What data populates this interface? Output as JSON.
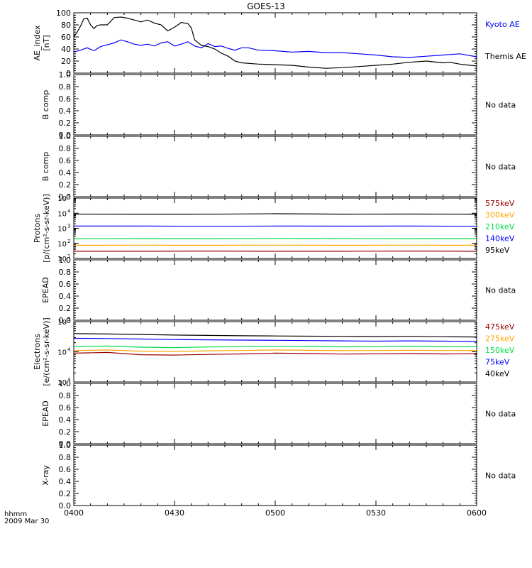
{
  "title": "GOES-13",
  "time_axis": {
    "ticks": [
      "0400",
      "0430",
      "0500",
      "0530",
      "0600"
    ],
    "label_line1": "hhmm",
    "label_line2": "2009 Mar 30"
  },
  "colors": {
    "black": "#000000",
    "blue": "#0000ff",
    "green": "#00dd44",
    "orange": "#ffa500",
    "darkred": "#990000"
  },
  "chart_data": [
    {
      "type": "line",
      "panel": "ae",
      "ylabel_line1": "AE_index",
      "ylabel_line2": "[nT]",
      "ylim": [
        0,
        100
      ],
      "yticks": [
        "0",
        "20",
        "40",
        "60",
        "80",
        "100"
      ],
      "x_unit": "minutes after 0400",
      "series": [
        {
          "name": "Kyoto AE",
          "color": "blue",
          "x": [
            0,
            2,
            4,
            6,
            8,
            10,
            12,
            14,
            16,
            18,
            20,
            22,
            24,
            26,
            28,
            30,
            32,
            34,
            36,
            38,
            40,
            42,
            44,
            46,
            48,
            50,
            52,
            55,
            60,
            65,
            70,
            75,
            80,
            85,
            90,
            95,
            100,
            105,
            110,
            115,
            120
          ],
          "values": [
            35,
            38,
            42,
            37,
            44,
            47,
            50,
            55,
            52,
            48,
            46,
            48,
            45,
            50,
            52,
            45,
            48,
            52,
            45,
            42,
            49,
            44,
            45,
            41,
            38,
            42,
            42,
            38,
            37,
            35,
            36,
            34,
            34,
            32,
            30,
            27,
            26,
            28,
            30,
            32,
            27
          ]
        },
        {
          "name": "Themis AE",
          "color": "black",
          "x": [
            0,
            1,
            2,
            3,
            4,
            5,
            6,
            7,
            8,
            10,
            12,
            14,
            16,
            18,
            20,
            22,
            24,
            26,
            28,
            30,
            32,
            34,
            35,
            36,
            38,
            40,
            42,
            44,
            46,
            48,
            50,
            55,
            60,
            65,
            70,
            75,
            80,
            85,
            90,
            95,
            100,
            105,
            110,
            112,
            115,
            118,
            120
          ],
          "values": [
            60,
            68,
            78,
            90,
            91,
            80,
            74,
            79,
            80,
            80,
            92,
            93,
            91,
            88,
            85,
            88,
            83,
            80,
            70,
            76,
            84,
            82,
            75,
            55,
            46,
            44,
            40,
            33,
            28,
            20,
            17,
            15,
            14,
            13,
            10,
            8,
            9,
            11,
            13,
            15,
            18,
            20,
            17,
            18,
            15,
            13,
            12
          ]
        }
      ]
    },
    {
      "type": "line",
      "panel": "bcomp1",
      "ylabel": "B comp",
      "ylim": [
        0,
        1
      ],
      "yticks": [
        "0.0",
        "0.2",
        "0.4",
        "0.6",
        "0.8",
        "1.0"
      ],
      "status": "No data",
      "series": []
    },
    {
      "type": "line",
      "panel": "bcomp2",
      "ylabel": "B comp",
      "ylim": [
        0,
        1
      ],
      "yticks": [
        "0.0",
        "0.2",
        "0.4",
        "0.6",
        "0.8",
        "1.0"
      ],
      "status": "No data",
      "series": []
    },
    {
      "type": "line",
      "panel": "protons",
      "ylabel_line1": "Protons",
      "ylabel_line2": "[p/(cm²-s-sr-keV)]",
      "yscale": "log",
      "ylim": [
        10,
        100000
      ],
      "yticks": [
        {
          "base": "10",
          "exp": "1"
        },
        {
          "base": "10",
          "exp": "2"
        },
        {
          "base": "10",
          "exp": "3"
        },
        {
          "base": "10",
          "exp": "4"
        },
        {
          "base": "10",
          "exp": "5"
        }
      ],
      "x_unit": "minutes after 0400",
      "series": [
        {
          "name": "575keV",
          "color": "darkred",
          "x": [
            0,
            20,
            40,
            60,
            80,
            100,
            120
          ],
          "values": [
            30,
            30,
            31,
            30,
            30,
            31,
            30
          ]
        },
        {
          "name": "300keV",
          "color": "orange",
          "x": [
            0,
            20,
            40,
            60,
            80,
            100,
            120
          ],
          "values": [
            75,
            76,
            75,
            76,
            75,
            76,
            75
          ]
        },
        {
          "name": "210keV",
          "color": "green",
          "x": [
            0,
            20,
            40,
            60,
            80,
            100,
            120
          ],
          "values": [
            200,
            205,
            200,
            210,
            205,
            200,
            205
          ]
        },
        {
          "name": "140keV",
          "color": "blue",
          "x": [
            0,
            20,
            40,
            60,
            80,
            100,
            120
          ],
          "values": [
            1400,
            1400,
            1350,
            1400,
            1380,
            1400,
            1350
          ]
        },
        {
          "name": "95keV",
          "color": "black",
          "x": [
            0,
            20,
            40,
            60,
            80,
            100,
            120
          ],
          "values": [
            8500,
            8600,
            8500,
            9200,
            8600,
            8700,
            8600
          ]
        }
      ]
    },
    {
      "type": "line",
      "panel": "epead1",
      "ylabel": "EPEAD",
      "ylim": [
        0,
        1
      ],
      "yticks": [
        "0.0",
        "0.2",
        "0.4",
        "0.6",
        "0.8",
        "1.0"
      ],
      "status": "No data",
      "series": []
    },
    {
      "type": "line",
      "panel": "electrons",
      "ylabel_line1": "Electrons",
      "ylabel_line2": "[e/(cm²-s-sr-keV)]",
      "yscale": "log",
      "ylim": [
        1000,
        100000
      ],
      "yticks": [
        {
          "base": "10",
          "exp": "3"
        },
        {
          "base": "10",
          "exp": "4"
        },
        {
          "base": "10",
          "exp": "5"
        }
      ],
      "x_unit": "minutes after 0400",
      "series": [
        {
          "name": "475keV",
          "color": "darkred",
          "x": [
            0,
            10,
            20,
            30,
            40,
            50,
            60,
            70,
            80,
            90,
            100,
            110,
            120
          ],
          "values": [
            9000,
            9500,
            8000,
            7800,
            8200,
            8500,
            9000,
            8800,
            8400,
            8600,
            8800,
            8500,
            8700
          ]
        },
        {
          "name": "275keV",
          "color": "orange",
          "x": [
            0,
            10,
            20,
            30,
            40,
            50,
            60,
            70,
            80,
            90,
            100,
            110,
            120
          ],
          "values": [
            11000,
            11500,
            10500,
            10300,
            10800,
            11000,
            11500,
            11200,
            10900,
            11000,
            11200,
            11000,
            11100
          ]
        },
        {
          "name": "150keV",
          "color": "green",
          "x": [
            0,
            10,
            20,
            30,
            40,
            50,
            60,
            70,
            80,
            90,
            100,
            110,
            120
          ],
          "values": [
            15000,
            15500,
            14200,
            13800,
            14500,
            14800,
            15300,
            15000,
            14600,
            14800,
            15000,
            14700,
            14900
          ]
        },
        {
          "name": "75keV",
          "color": "blue",
          "x": [
            0,
            10,
            20,
            30,
            40,
            50,
            60,
            70,
            80,
            90,
            100,
            110,
            120
          ],
          "values": [
            28000,
            27500,
            26500,
            25500,
            25000,
            24500,
            24000,
            23500,
            23000,
            22500,
            23000,
            22500,
            22000
          ]
        },
        {
          "name": "40keV",
          "color": "black",
          "x": [
            0,
            10,
            20,
            30,
            40,
            50,
            60,
            70,
            80,
            90,
            100,
            110,
            120
          ],
          "values": [
            40000,
            39000,
            37500,
            36000,
            35000,
            34000,
            33500,
            33000,
            32500,
            32000,
            32500,
            31500,
            31000
          ]
        }
      ]
    },
    {
      "type": "line",
      "panel": "epead2",
      "ylabel": "EPEAD",
      "ylim": [
        0,
        1
      ],
      "yticks": [
        "0.0",
        "0.2",
        "0.4",
        "0.6",
        "0.8",
        "1.0"
      ],
      "status": "No data",
      "series": []
    },
    {
      "type": "line",
      "panel": "xray",
      "ylabel": "X-ray",
      "ylim": [
        0,
        1
      ],
      "yticks": [
        "0.0",
        "0.2",
        "0.4",
        "0.6",
        "0.8",
        "1.0"
      ],
      "status": "No data",
      "series": []
    }
  ]
}
